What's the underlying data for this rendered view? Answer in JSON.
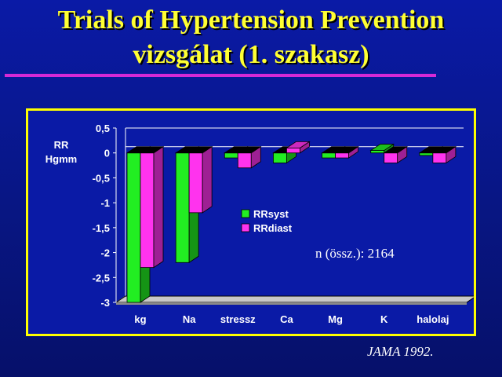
{
  "slide": {
    "title_line1": "Trials of Hypertension Prevention",
    "title_line2": "vizsgálat (1. szakasz)",
    "note": "n (össz.): 2164",
    "citation": "JAMA 1992."
  },
  "colors": {
    "background": "#0a1aa6",
    "title": "#ffff33",
    "frame": "#ffff00",
    "rule": "#d62ad6",
    "syst": "#22ee22",
    "diast": "#ff33ee"
  },
  "chart_data": {
    "type": "bar",
    "ylabel": "RR\nHgmm",
    "ylim": [
      -3,
      0.5
    ],
    "yticks": [
      0.5,
      0,
      -0.5,
      -1,
      -1.5,
      -2,
      -2.5,
      -3
    ],
    "categories": [
      "kg",
      "Na",
      "stressz",
      "Ca",
      "Mg",
      "K",
      "halolaj"
    ],
    "series": [
      {
        "name": "RRsyst",
        "values": [
          -3.0,
          -2.2,
          -0.1,
          -0.2,
          -0.1,
          0.05,
          -0.05
        ]
      },
      {
        "name": "RRdiast",
        "values": [
          -2.3,
          -1.2,
          -0.3,
          0.1,
          -0.1,
          -0.2,
          -0.2
        ]
      }
    ],
    "legend_position": "center-right",
    "grid": false
  }
}
